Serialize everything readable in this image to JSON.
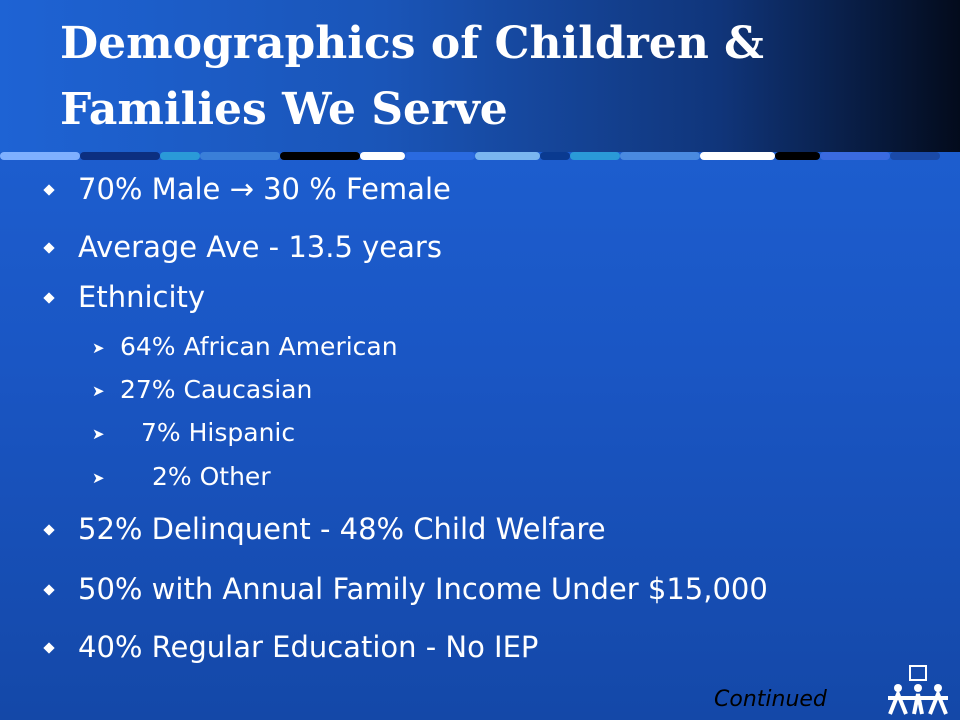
{
  "header": {
    "title_lines": [
      "Demographics of Children &",
      "Families We Serve"
    ]
  },
  "bullets": [
    {
      "text": "70% Male → 30 % Female"
    },
    {
      "text": "Average Ave - 13.5 years"
    },
    {
      "text": "Ethnicity",
      "sub": [
        "64% African American",
        "27% Caucasian",
        "7% Hispanic",
        "2% Other"
      ]
    },
    {
      "text": "52% Delinquent - 48% Child Welfare"
    },
    {
      "text": "50% with Annual Family Income Under $15,000"
    },
    {
      "text": "40% Regular Education - No IEP"
    }
  ],
  "footer": {
    "note": "Continued"
  }
}
